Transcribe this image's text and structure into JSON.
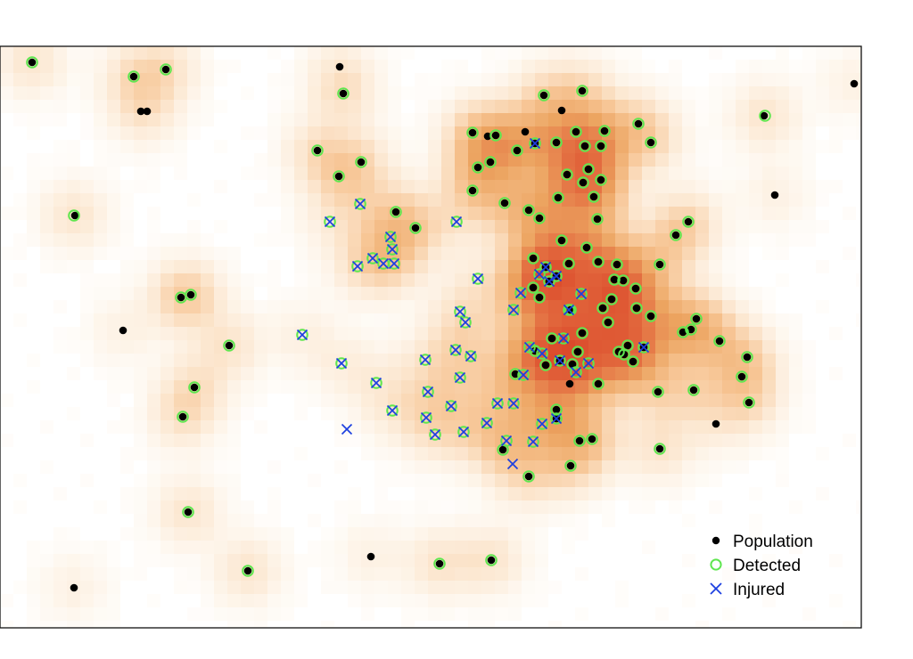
{
  "chart_data": {
    "type": "scatter",
    "title": "",
    "xlabel": "",
    "ylabel": "",
    "grid": false,
    "legend_position": "bottom-right",
    "background": "heatmap",
    "heatmap_colors": [
      "#ffffff",
      "#fde8cf",
      "#f6c48f",
      "#eba15a",
      "#e2663b",
      "#db4a2b"
    ],
    "series": [
      {
        "name": "Population",
        "marker": "filled-circle",
        "color": "#000000",
        "points": [
          [
            36,
            70
          ],
          [
            150,
            86
          ],
          [
            186,
            78
          ],
          [
            381,
            75
          ],
          [
            385,
            105
          ],
          [
            158,
            125
          ],
          [
            165,
            125
          ],
          [
            958,
            94
          ],
          [
            869,
            219
          ],
          [
            138,
            371
          ],
          [
            803,
            476
          ],
          [
            416,
            625
          ],
          [
            83,
            660
          ],
          [
            630,
            124
          ],
          [
            589,
            148
          ],
          [
            547,
            153
          ],
          [
            639,
            431
          ],
          [
            610,
            107
          ],
          [
            653,
            102
          ],
          [
            716,
            139
          ],
          [
            730,
            160
          ],
          [
            857,
            130
          ],
          [
            530,
            149
          ],
          [
            556,
            152
          ],
          [
            580,
            169
          ],
          [
            600,
            161
          ],
          [
            624,
            160
          ],
          [
            646,
            148
          ],
          [
            656,
            164
          ],
          [
            674,
            164
          ],
          [
            678,
            147
          ],
          [
            550,
            182
          ],
          [
            536,
            188
          ],
          [
            566,
            228
          ],
          [
            593,
            236
          ],
          [
            605,
            245
          ],
          [
            626,
            222
          ],
          [
            636,
            196
          ],
          [
            660,
            190
          ],
          [
            674,
            202
          ],
          [
            654,
            205
          ],
          [
            666,
            221
          ],
          [
            670,
            246
          ],
          [
            630,
            270
          ],
          [
            658,
            278
          ],
          [
            638,
            296
          ],
          [
            612,
            300
          ],
          [
            598,
            323
          ],
          [
            605,
            334
          ],
          [
            640,
            348
          ],
          [
            671,
            294
          ],
          [
            692,
            297
          ],
          [
            689,
            314
          ],
          [
            699,
            315
          ],
          [
            713,
            324
          ],
          [
            686,
            336
          ],
          [
            676,
            346
          ],
          [
            682,
            362
          ],
          [
            714,
            346
          ],
          [
            730,
            355
          ],
          [
            740,
            297
          ],
          [
            758,
            264
          ],
          [
            772,
            249
          ],
          [
            766,
            373
          ],
          [
            775,
            370
          ],
          [
            781,
            358
          ],
          [
            807,
            383
          ],
          [
            838,
            401
          ],
          [
            832,
            423
          ],
          [
            840,
            452
          ],
          [
            778,
            438
          ],
          [
            738,
            440
          ],
          [
            694,
            395
          ],
          [
            704,
            388
          ],
          [
            710,
            406
          ],
          [
            722,
            390
          ],
          [
            700,
            398
          ],
          [
            671,
            431
          ],
          [
            650,
            495
          ],
          [
            664,
            493
          ],
          [
            640,
            523
          ],
          [
            593,
            535
          ],
          [
            564,
            505
          ],
          [
            578,
            420
          ],
          [
            624,
            460
          ],
          [
            624,
            470
          ],
          [
            740,
            504
          ],
          [
            628,
            405
          ],
          [
            642,
            409
          ],
          [
            648,
            395
          ],
          [
            653,
            374
          ],
          [
            619,
            380
          ],
          [
            600,
            394
          ],
          [
            612,
            410
          ],
          [
            530,
            214
          ],
          [
            380,
            198
          ],
          [
            405,
            182
          ],
          [
            356,
            169
          ],
          [
            466,
            256
          ],
          [
            444,
            238
          ],
          [
            84,
            242
          ],
          [
            203,
            334
          ],
          [
            214,
            331
          ],
          [
            257,
            388
          ],
          [
            218,
            435
          ],
          [
            205,
            468
          ],
          [
            211,
            575
          ],
          [
            278,
            641
          ],
          [
            493,
            633
          ],
          [
            551,
            629
          ],
          [
            616,
            316
          ],
          [
            624,
            310
          ],
          [
            598,
            290
          ]
        ]
      },
      {
        "name": "Detected",
        "marker": "open-circle",
        "color": "#5fe64f",
        "points": [
          [
            36,
            70
          ],
          [
            150,
            86
          ],
          [
            186,
            78
          ],
          [
            385,
            105
          ],
          [
            858,
            130
          ],
          [
            83,
            242
          ],
          [
            203,
            334
          ],
          [
            214,
            331
          ],
          [
            257,
            388
          ],
          [
            218,
            435
          ],
          [
            205,
            468
          ],
          [
            211,
            575
          ],
          [
            278,
            641
          ],
          [
            493,
            633
          ],
          [
            551,
            629
          ],
          [
            610,
            107
          ],
          [
            653,
            102
          ],
          [
            716,
            139
          ],
          [
            730,
            160
          ],
          [
            530,
            149
          ],
          [
            556,
            152
          ],
          [
            580,
            169
          ],
          [
            600,
            161
          ],
          [
            624,
            160
          ],
          [
            646,
            148
          ],
          [
            656,
            164
          ],
          [
            674,
            164
          ],
          [
            678,
            147
          ],
          [
            550,
            182
          ],
          [
            536,
            188
          ],
          [
            530,
            214
          ],
          [
            566,
            228
          ],
          [
            593,
            236
          ],
          [
            605,
            245
          ],
          [
            626,
            222
          ],
          [
            636,
            196
          ],
          [
            660,
            190
          ],
          [
            674,
            202
          ],
          [
            654,
            205
          ],
          [
            666,
            221
          ],
          [
            670,
            246
          ],
          [
            630,
            270
          ],
          [
            658,
            278
          ],
          [
            638,
            296
          ],
          [
            612,
            300
          ],
          [
            598,
            323
          ],
          [
            605,
            334
          ],
          [
            640,
            348
          ],
          [
            671,
            294
          ],
          [
            692,
            297
          ],
          [
            689,
            314
          ],
          [
            699,
            315
          ],
          [
            713,
            324
          ],
          [
            686,
            336
          ],
          [
            676,
            346
          ],
          [
            682,
            362
          ],
          [
            714,
            346
          ],
          [
            730,
            355
          ],
          [
            740,
            297
          ],
          [
            758,
            264
          ],
          [
            772,
            249
          ],
          [
            766,
            373
          ],
          [
            775,
            370
          ],
          [
            781,
            358
          ],
          [
            807,
            383
          ],
          [
            838,
            401
          ],
          [
            832,
            423
          ],
          [
            840,
            452
          ],
          [
            778,
            438
          ],
          [
            738,
            440
          ],
          [
            694,
            395
          ],
          [
            704,
            388
          ],
          [
            710,
            406
          ],
          [
            722,
            390
          ],
          [
            700,
            398
          ],
          [
            671,
            431
          ],
          [
            650,
            495
          ],
          [
            664,
            493
          ],
          [
            640,
            523
          ],
          [
            593,
            535
          ],
          [
            564,
            505
          ],
          [
            578,
            420
          ],
          [
            624,
            460
          ],
          [
            624,
            470
          ],
          [
            740,
            504
          ],
          [
            628,
            405
          ],
          [
            642,
            409
          ],
          [
            648,
            395
          ],
          [
            653,
            374
          ],
          [
            619,
            380
          ],
          [
            600,
            394
          ],
          [
            612,
            410
          ],
          [
            380,
            198
          ],
          [
            405,
            182
          ],
          [
            356,
            169
          ],
          [
            466,
            256
          ],
          [
            444,
            238
          ],
          [
            616,
            316
          ],
          [
            624,
            310
          ],
          [
            598,
            290
          ],
          [
            370,
            249
          ],
          [
            404,
            229
          ],
          [
            512,
            249
          ],
          [
            438,
            266
          ],
          [
            440,
            280
          ],
          [
            418,
            290
          ],
          [
            430,
            296
          ],
          [
            442,
            296
          ],
          [
            401,
            299
          ],
          [
            536,
            313
          ],
          [
            584,
            329
          ],
          [
            576,
            348
          ],
          [
            516,
            350
          ],
          [
            522,
            362
          ],
          [
            511,
            393
          ],
          [
            528,
            400
          ],
          [
            477,
            404
          ],
          [
            516,
            424
          ],
          [
            422,
            430
          ],
          [
            480,
            440
          ],
          [
            440,
            461
          ],
          [
            506,
            456
          ],
          [
            558,
            453
          ],
          [
            576,
            453
          ],
          [
            478,
            469
          ],
          [
            546,
            475
          ],
          [
            608,
            476
          ],
          [
            520,
            485
          ],
          [
            488,
            488
          ],
          [
            568,
            495
          ],
          [
            598,
            496
          ],
          [
            339,
            376
          ],
          [
            383,
            408
          ],
          [
            587,
            421
          ],
          [
            638,
            348
          ],
          [
            652,
            330
          ],
          [
            632,
            380
          ],
          [
            646,
            418
          ],
          [
            660,
            408
          ],
          [
            605,
            308
          ],
          [
            594,
            390
          ],
          [
            608,
            397
          ]
        ]
      },
      {
        "name": "Injured",
        "marker": "x",
        "color": "#1c3fe0",
        "points": [
          [
            370,
            249
          ],
          [
            404,
            229
          ],
          [
            512,
            249
          ],
          [
            600,
            161
          ],
          [
            438,
            266
          ],
          [
            440,
            280
          ],
          [
            418,
            290
          ],
          [
            430,
            296
          ],
          [
            442,
            296
          ],
          [
            401,
            299
          ],
          [
            536,
            313
          ],
          [
            584,
            329
          ],
          [
            576,
            348
          ],
          [
            516,
            350
          ],
          [
            522,
            362
          ],
          [
            511,
            393
          ],
          [
            528,
            400
          ],
          [
            477,
            404
          ],
          [
            516,
            424
          ],
          [
            422,
            430
          ],
          [
            480,
            440
          ],
          [
            440,
            461
          ],
          [
            506,
            456
          ],
          [
            558,
            453
          ],
          [
            576,
            453
          ],
          [
            478,
            469
          ],
          [
            546,
            475
          ],
          [
            608,
            476
          ],
          [
            520,
            485
          ],
          [
            488,
            488
          ],
          [
            568,
            495
          ],
          [
            598,
            496
          ],
          [
            575,
            521
          ],
          [
            389,
            482
          ],
          [
            339,
            376
          ],
          [
            383,
            408
          ],
          [
            587,
            421
          ],
          [
            638,
            348
          ],
          [
            652,
            330
          ],
          [
            632,
            380
          ],
          [
            646,
            418
          ],
          [
            660,
            408
          ],
          [
            605,
            308
          ],
          [
            616,
            316
          ],
          [
            624,
            310
          ],
          [
            612,
            300
          ],
          [
            594,
            390
          ],
          [
            608,
            397
          ],
          [
            628,
            405
          ],
          [
            722,
            390
          ],
          [
            624,
            470
          ]
        ]
      }
    ]
  },
  "legend": {
    "population_label": "Population",
    "detected_label": "Detected",
    "injured_label": "Injured"
  }
}
